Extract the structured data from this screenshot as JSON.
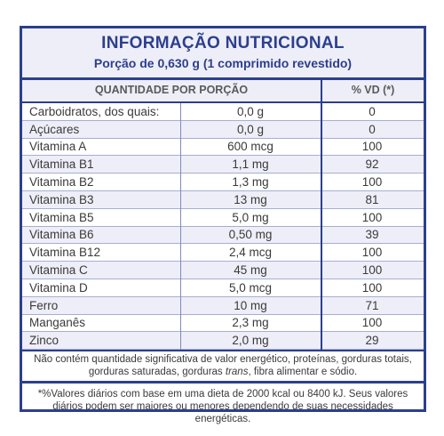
{
  "title": "INFORMAÇÃO NUTRICIONAL",
  "portion": "Porção de 0,630 g (1 comprimido revestido)",
  "columns": {
    "quantity": "QUANTIDADE POR PORÇÃO",
    "vd": "% VD (*)"
  },
  "rows": [
    {
      "name": "Carboidratos, dos quais:",
      "amount": "0,0 g",
      "vd": "0"
    },
    {
      "name": "Açúcares",
      "amount": "0,0 g",
      "vd": "0"
    },
    {
      "name": "Vitamina A",
      "amount": "600 mcg",
      "vd": "100"
    },
    {
      "name": "Vitamina B1",
      "amount": "1,1 mg",
      "vd": "92"
    },
    {
      "name": "Vitamina B2",
      "amount": "1,3 mg",
      "vd": "100"
    },
    {
      "name": "Vitamina B3",
      "amount": "13 mg",
      "vd": "81"
    },
    {
      "name": "Vitamina B5",
      "amount": "5,0 mg",
      "vd": "100"
    },
    {
      "name": "Vitamina B6",
      "amount": "0,50 mg",
      "vd": "39"
    },
    {
      "name": "Vitamina B12",
      "amount": "2,4 mcg",
      "vd": "100"
    },
    {
      "name": "Vitamina C",
      "amount": "45 mg",
      "vd": "100"
    },
    {
      "name": "Vitamina D",
      "amount": "5,0 mcg",
      "vd": "100"
    },
    {
      "name": "Ferro",
      "amount": "10 mg",
      "vd": "71"
    },
    {
      "name": "Manganês",
      "amount": "2,3 mg",
      "vd": "100"
    },
    {
      "name": "Zinco",
      "amount": "2,0 mg",
      "vd": "29"
    }
  ],
  "note_insignificant": {
    "before": "Não contém quantidade significativa de valor energético, proteínas, gorduras totais, gorduras saturadas, gorduras ",
    "italic": "trans",
    "after": ", fibra alimentar e sódio."
  },
  "note_daily": "*%Valores diários com base em uma dieta de 2000 kcal ou 8400 kJ. Seus valores diários podem ser maiores ou menores dependendo de suas necessidades energéticas."
}
